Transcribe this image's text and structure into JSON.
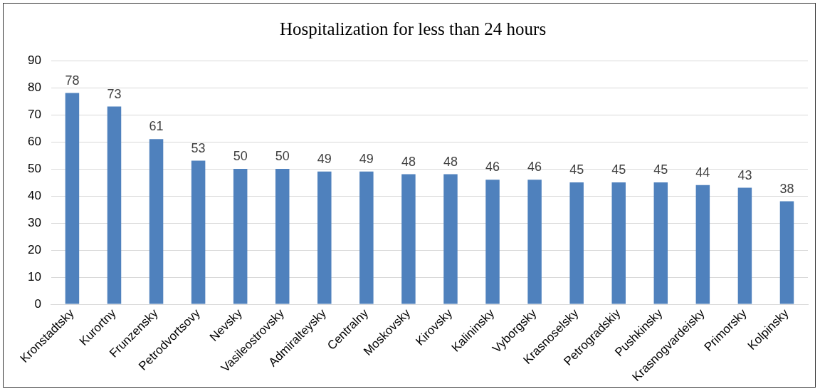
{
  "chart_data": {
    "type": "bar",
    "title": "Hospitalization for less than 24 hours",
    "categories": [
      "Kronstadtsky",
      "Kurortny",
      "Frunzensky",
      "Petrodvortsovy",
      "Nevsky",
      "Vasileostrovsky",
      "Admiralteysky",
      "Centralny",
      "Moskovsky",
      "Kirovsky",
      "Kalininsky",
      "Vyborgsky",
      "Krasnoselsky",
      "Petrogradskiy",
      "Pushkinsky",
      "Krasnogvardeisky",
      "Primorsky",
      "Kolpinsky"
    ],
    "values": [
      78,
      73,
      61,
      53,
      50,
      50,
      49,
      49,
      48,
      48,
      46,
      46,
      45,
      45,
      45,
      44,
      43,
      38
    ],
    "color": "#4f81bd",
    "ylim": [
      0,
      90
    ],
    "yticks": [
      0,
      10,
      20,
      30,
      40,
      50,
      60,
      70,
      80,
      90
    ],
    "grid": "y",
    "data_labels": true,
    "legend": false
  }
}
